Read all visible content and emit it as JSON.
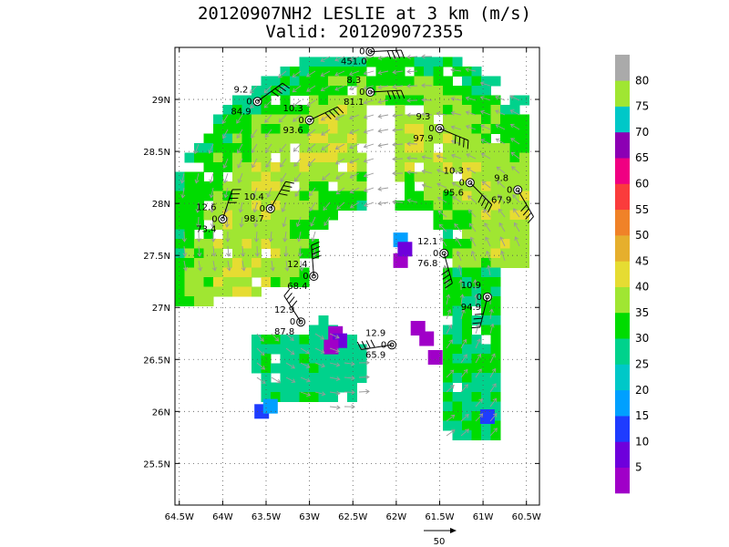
{
  "title_line1": "20120907NH2 LESLIE at 3 km (m/s)",
  "title_line2": "Valid: 201209072355",
  "x_ticks": [
    {
      "lon": -64.5,
      "label": "64.5W"
    },
    {
      "lon": -64.0,
      "label": "64W"
    },
    {
      "lon": -63.5,
      "label": "63.5W"
    },
    {
      "lon": -63.0,
      "label": "63W"
    },
    {
      "lon": -62.5,
      "label": "62.5W"
    },
    {
      "lon": -62.0,
      "label": "62W"
    },
    {
      "lon": -61.5,
      "label": "61.5W"
    },
    {
      "lon": -61.0,
      "label": "61W"
    },
    {
      "lon": -60.5,
      "label": "60.5W"
    }
  ],
  "y_ticks": [
    {
      "lat": 25.5,
      "label": "25.5N"
    },
    {
      "lat": 26.0,
      "label": "26N"
    },
    {
      "lat": 26.5,
      "label": "26.5N"
    },
    {
      "lat": 27.0,
      "label": "27N"
    },
    {
      "lat": 27.5,
      "label": "27.5N"
    },
    {
      "lat": 28.0,
      "label": "28N"
    },
    {
      "lat": 28.5,
      "label": "28.5N"
    },
    {
      "lat": 29.0,
      "label": "29N"
    }
  ],
  "lon_range": [
    -64.55,
    -60.35
  ],
  "lat_range": [
    25.1,
    29.5
  ],
  "colorbar": {
    "levels": [
      "5",
      "10",
      "15",
      "20",
      "25",
      "30",
      "35",
      "40",
      "45",
      "50",
      "55",
      "60",
      "65",
      "70",
      "75",
      "80"
    ],
    "colors": [
      "#a000c8",
      "#6e00dc",
      "#1e3cff",
      "#00a0ff",
      "#00c8c8",
      "#00d28c",
      "#00dc00",
      "#a0e632",
      "#e6dc32",
      "#e6af2d",
      "#f08228",
      "#fa3c3c",
      "#f00082",
      "#8c00b4",
      "#00c8c8",
      "#a0e632",
      "#aaaaaa"
    ]
  },
  "reference_vector": {
    "label": "50"
  },
  "stations": [
    {
      "lon": -62.3,
      "lat": 29.46,
      "top": "",
      "mid": "0",
      "bot": "451.0"
    },
    {
      "lon": -62.3,
      "lat": 29.07,
      "top": "8.3",
      "mid": "0",
      "bot": "81.1"
    },
    {
      "lon": -63.6,
      "lat": 28.98,
      "top": "9.2",
      "mid": "0",
      "bot": "84.9"
    },
    {
      "lon": -63.0,
      "lat": 28.8,
      "top": "10.3",
      "mid": "0",
      "bot": "93.6"
    },
    {
      "lon": -61.5,
      "lat": 28.72,
      "top": "9.3",
      "mid": "0",
      "bot": "97.9"
    },
    {
      "lon": -61.15,
      "lat": 28.2,
      "top": "10.3",
      "mid": "0",
      "bot": "95.6"
    },
    {
      "lon": -60.6,
      "lat": 28.13,
      "top": "9.8",
      "mid": "0",
      "bot": "67.9"
    },
    {
      "lon": -64.0,
      "lat": 27.85,
      "top": "12.6",
      "mid": "0",
      "bot": "73.4"
    },
    {
      "lon": -63.45,
      "lat": 27.95,
      "top": "10.4",
      "mid": "0",
      "bot": "98.7"
    },
    {
      "lon": -61.45,
      "lat": 27.52,
      "top": "12.1",
      "mid": "0",
      "bot": "76.8"
    },
    {
      "lon": -62.95,
      "lat": 27.3,
      "top": "12.4",
      "mid": "0",
      "bot": "68.4"
    },
    {
      "lon": -60.95,
      "lat": 27.1,
      "top": "10.9",
      "mid": "0",
      "bot": "94.9"
    },
    {
      "lon": -63.1,
      "lat": 26.86,
      "top": "12.9",
      "mid": "0",
      "bot": "87.8"
    },
    {
      "lon": -62.05,
      "lat": 26.64,
      "top": "12.9",
      "mid": "0",
      "bot": "65.9"
    }
  ]
}
